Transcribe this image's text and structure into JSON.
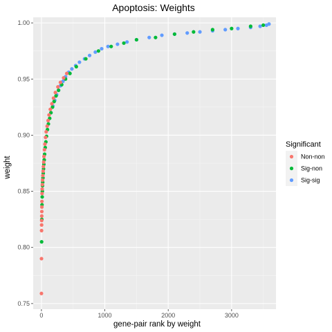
{
  "chart_data": {
    "type": "scatter",
    "title": "Apoptosis: Weights",
    "xlabel": "gene-pair rank by weight",
    "ylabel": "weight",
    "xlim": [
      -130,
      3700
    ],
    "ylim": [
      0.745,
      1.005
    ],
    "x_ticks": [
      0,
      1000,
      2000,
      3000
    ],
    "x_tick_labels": [
      "0",
      "1000",
      "2000",
      "3000"
    ],
    "y_ticks": [
      0.75,
      0.8,
      0.85,
      0.9,
      0.95,
      1.0
    ],
    "y_tick_labels": [
      "0.75",
      "0.80",
      "0.85",
      "0.90",
      "0.95",
      "1.00"
    ],
    "grid": true,
    "legend_position": "right",
    "legend_title": "Significant",
    "series": [
      {
        "name": "Non-non",
        "color": "#F8766D",
        "x": [
          0,
          1,
          2,
          3,
          4,
          5,
          6,
          7,
          8,
          10,
          12,
          15,
          18,
          22,
          26,
          30,
          35,
          40,
          48,
          55,
          65,
          75,
          90,
          105,
          120,
          140,
          165,
          190,
          220,
          260,
          300,
          350,
          400
        ],
        "y": [
          0.759,
          0.79,
          0.815,
          0.82,
          0.824,
          0.828,
          0.832,
          0.836,
          0.841,
          0.848,
          0.852,
          0.856,
          0.86,
          0.864,
          0.868,
          0.872,
          0.876,
          0.881,
          0.887,
          0.892,
          0.898,
          0.903,
          0.908,
          0.913,
          0.918,
          0.923,
          0.928,
          0.933,
          0.938,
          0.943,
          0.947,
          0.951,
          0.955
        ]
      },
      {
        "name": "Sig-non",
        "color": "#00BA38",
        "x": [
          3,
          6,
          9,
          12,
          14,
          17,
          20,
          24,
          28,
          33,
          38,
          44,
          50,
          60,
          70,
          80,
          95,
          110,
          130,
          150,
          175,
          200,
          230,
          270,
          320,
          380,
          450,
          550,
          700,
          900,
          1100,
          1300,
          1500,
          1800,
          2100,
          2400,
          2700,
          3000,
          3300,
          3500
        ],
        "y": [
          0.805,
          0.825,
          0.838,
          0.845,
          0.85,
          0.855,
          0.858,
          0.862,
          0.866,
          0.87,
          0.874,
          0.878,
          0.883,
          0.889,
          0.894,
          0.899,
          0.905,
          0.91,
          0.915,
          0.92,
          0.925,
          0.93,
          0.935,
          0.94,
          0.945,
          0.95,
          0.955,
          0.961,
          0.968,
          0.975,
          0.979,
          0.982,
          0.985,
          0.987,
          0.99,
          0.992,
          0.994,
          0.995,
          0.997,
          0.998
        ]
      },
      {
        "name": "Sig-sig",
        "color": "#619CFF",
        "x": [
          150,
          180,
          210,
          240,
          270,
          300,
          340,
          380,
          430,
          480,
          540,
          600,
          680,
          760,
          850,
          950,
          1050,
          1200,
          1350,
          1500,
          1700,
          1900,
          2100,
          2300,
          2500,
          2700,
          2900,
          3100,
          3300,
          3450,
          3550,
          3590
        ],
        "y": [
          0.92,
          0.926,
          0.931,
          0.936,
          0.94,
          0.944,
          0.948,
          0.952,
          0.956,
          0.959,
          0.962,
          0.965,
          0.968,
          0.971,
          0.974,
          0.977,
          0.979,
          0.981,
          0.983,
          0.985,
          0.987,
          0.989,
          0.99,
          0.991,
          0.992,
          0.993,
          0.994,
          0.995,
          0.996,
          0.997,
          0.998,
          0.999
        ]
      }
    ]
  }
}
